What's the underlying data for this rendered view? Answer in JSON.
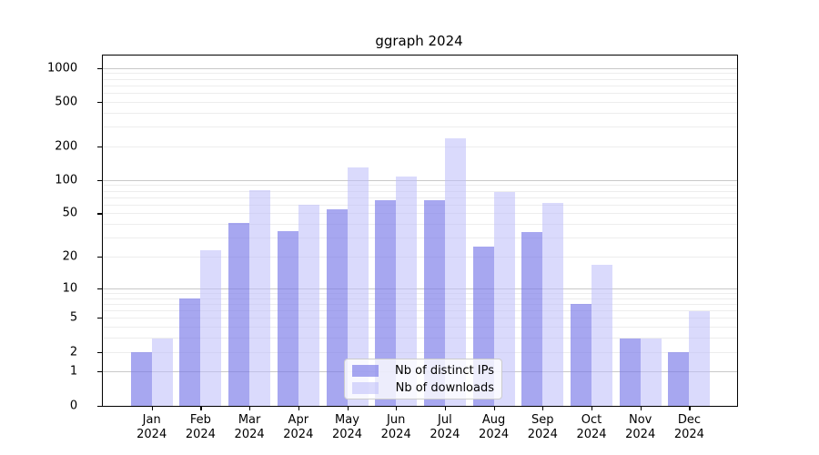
{
  "chart_data": {
    "type": "bar",
    "title": "ggraph 2024",
    "categories": [
      "Jan 2024",
      "Feb 2024",
      "Mar 2024",
      "Apr 2024",
      "May 2024",
      "Jun 2024",
      "Jul 2024",
      "Aug 2024",
      "Sep 2024",
      "Oct 2024",
      "Nov 2024",
      "Dec 2024"
    ],
    "category_top_lines": [
      "Jan",
      "Feb",
      "Mar",
      "Apr",
      "May",
      "Jun",
      "Jul",
      "Aug",
      "Sep",
      "Oct",
      "Nov",
      "Dec"
    ],
    "category_bottom_line": "2024",
    "series": [
      {
        "name": "Nb of distinct IPs",
        "color": "rgba(120,120,232,0.65)",
        "values": [
          2,
          8,
          41,
          35,
          55,
          66,
          66,
          25,
          34,
          7,
          3,
          2
        ]
      },
      {
        "name": "Nb of downloads",
        "color": "rgba(187,187,250,0.55)",
        "values": [
          3,
          23,
          82,
          60,
          130,
          108,
          240,
          78,
          63,
          17,
          3,
          6
        ]
      }
    ],
    "y_scale": "log1p",
    "ylabel": "",
    "xlabel": "",
    "ylim": [
      0,
      1280
    ],
    "y_ticks": [
      0,
      1,
      2,
      5,
      10,
      20,
      50,
      100,
      200,
      500,
      1000
    ],
    "y_major_gridlines": [
      1,
      10,
      100,
      1000
    ],
    "y_minor_gridlines": [
      2,
      3,
      4,
      5,
      6,
      7,
      8,
      9,
      20,
      30,
      40,
      50,
      60,
      70,
      80,
      90,
      200,
      300,
      400,
      500,
      600,
      700,
      800,
      900
    ],
    "grid": true,
    "legend_position": "lower center"
  },
  "colors": {
    "spine": "#000000",
    "major_grid": "#c9c9c9",
    "minor_grid": "#ededed",
    "legend_border": "#cccccc"
  }
}
